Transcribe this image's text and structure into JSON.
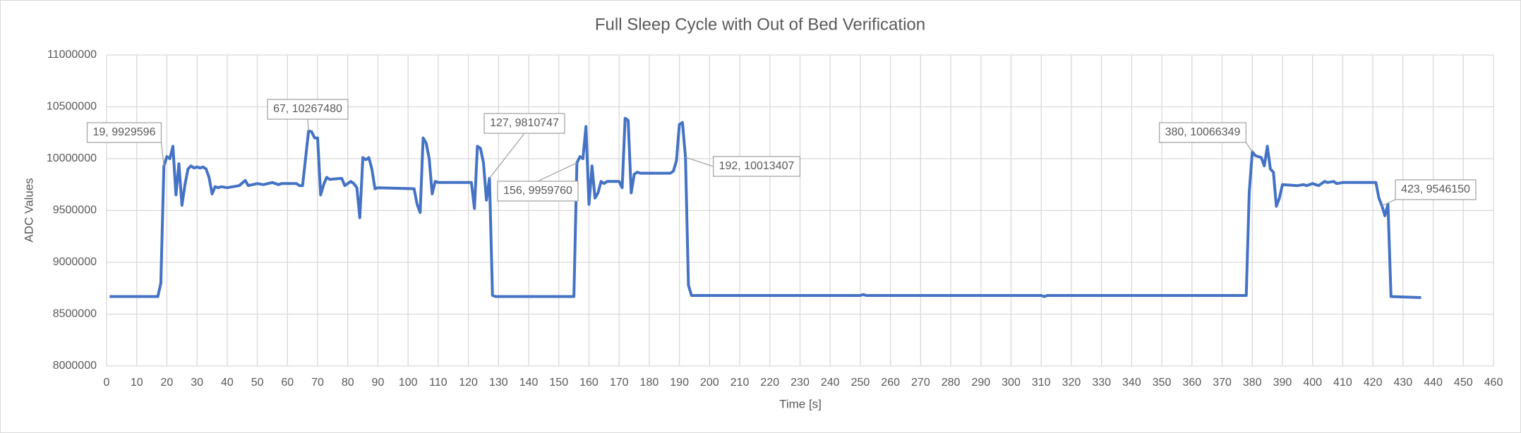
{
  "chart_data": {
    "type": "line",
    "title": "Full Sleep Cycle with Out of Bed Verification",
    "x_label": "Time [s]",
    "y_label": "ADC Values",
    "color": "#4472c4",
    "grid": true,
    "xlim": [
      0,
      460
    ],
    "ylim": [
      8000000,
      11000000
    ],
    "xticks": [
      0,
      10,
      20,
      30,
      40,
      50,
      60,
      70,
      80,
      90,
      100,
      110,
      120,
      130,
      140,
      150,
      160,
      170,
      180,
      190,
      200,
      210,
      220,
      230,
      240,
      250,
      260,
      270,
      280,
      290,
      300,
      310,
      320,
      330,
      340,
      350,
      360,
      370,
      380,
      390,
      400,
      410,
      420,
      430,
      440,
      450,
      460
    ],
    "yticks": [
      8000000,
      8500000,
      9000000,
      9500000,
      10000000,
      10500000,
      11000000
    ],
    "x": [
      1,
      17,
      18,
      19,
      20,
      21,
      22,
      23,
      24,
      25,
      26,
      27,
      28,
      29,
      30,
      31,
      32,
      33,
      34,
      35,
      36,
      37,
      38,
      40,
      44,
      46,
      47,
      50,
      52,
      55,
      57,
      58,
      63,
      64,
      65,
      67,
      68,
      69,
      70,
      71,
      72,
      73,
      74,
      78,
      79,
      80,
      81,
      82,
      83,
      84,
      85,
      86,
      87,
      88,
      89,
      90,
      102,
      103,
      104,
      105,
      106,
      107,
      108,
      109,
      110,
      121,
      122,
      123,
      124,
      125,
      126,
      127,
      128,
      129,
      155,
      156,
      157,
      158,
      159,
      160,
      161,
      162,
      163,
      164,
      165,
      166,
      170,
      171,
      172,
      173,
      174,
      175,
      176,
      177,
      187,
      188,
      189,
      190,
      191,
      192,
      193,
      194,
      250,
      251,
      252,
      310,
      311,
      312,
      378,
      379,
      380,
      381,
      383,
      384,
      385,
      386,
      387,
      388,
      389,
      390,
      395,
      397,
      398,
      400,
      402,
      404,
      405,
      407,
      408,
      410,
      420,
      421,
      422,
      423,
      424,
      425,
      426,
      436
    ],
    "values": [
      8670000,
      8670000,
      8800000,
      9929596,
      10020000,
      10000000,
      10120000,
      9650000,
      9950000,
      9550000,
      9750000,
      9900000,
      9930000,
      9910000,
      9920000,
      9910000,
      9920000,
      9900000,
      9820000,
      9660000,
      9730000,
      9720000,
      9730000,
      9720000,
      9740000,
      9790000,
      9740000,
      9760000,
      9750000,
      9770000,
      9750000,
      9760000,
      9760000,
      9740000,
      9740000,
      10267480,
      10260000,
      10200000,
      10200000,
      9650000,
      9750000,
      9820000,
      9800000,
      9810000,
      9740000,
      9760000,
      9780000,
      9760000,
      9720000,
      9430000,
      10010000,
      9990000,
      10010000,
      9900000,
      9710000,
      9720000,
      9710000,
      9560000,
      9480000,
      10200000,
      10150000,
      10000000,
      9660000,
      9780000,
      9770000,
      9770000,
      9520000,
      10120000,
      10100000,
      9960000,
      9600000,
      9810747,
      8680000,
      8670000,
      8670000,
      9959760,
      10020000,
      10000000,
      10310000,
      9560000,
      9930000,
      9620000,
      9670000,
      9780000,
      9760000,
      9780000,
      9780000,
      9720000,
      10390000,
      10370000,
      9670000,
      9850000,
      9870000,
      9860000,
      9860000,
      9880000,
      9980000,
      10330000,
      10350000,
      10013407,
      8780000,
      8680000,
      8680000,
      8690000,
      8680000,
      8680000,
      8670000,
      8680000,
      8680000,
      9680000,
      10066349,
      10030000,
      10010000,
      9930000,
      10120000,
      9900000,
      9870000,
      9540000,
      9620000,
      9750000,
      9740000,
      9750000,
      9740000,
      9760000,
      9740000,
      9780000,
      9770000,
      9780000,
      9760000,
      9770000,
      9770000,
      9770000,
      9620000,
      9546150,
      9450000,
      9560000,
      8670000,
      8660000
    ],
    "annotations": [
      "19, 9929596",
      "67, 10267480",
      "127, 9810747",
      "156, 9959760",
      "192, 10013407",
      "380, 10066349",
      "423, 9546150"
    ]
  }
}
